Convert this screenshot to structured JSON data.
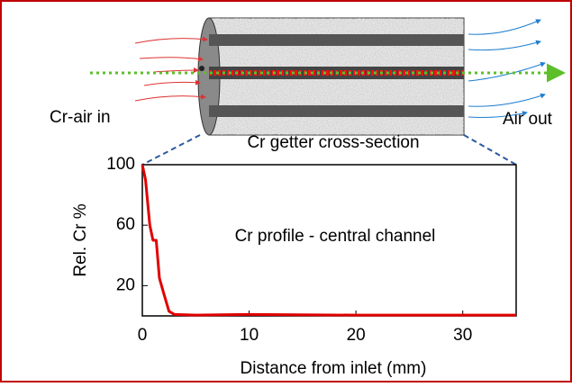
{
  "diagram": {
    "inlet_label": "Cr-air in",
    "outlet_label": "Air out",
    "caption": "Cr getter cross-section"
  },
  "chart_data": {
    "type": "line",
    "annotation": "Cr profile - central channel",
    "xlabel": "Distance from inlet (mm)",
    "ylabel": "Rel. Cr %",
    "x": [
      0,
      0.3,
      0.7,
      1,
      1.3,
      1.6,
      2,
      2.5,
      3,
      5,
      10,
      20,
      30,
      35
    ],
    "values": [
      100,
      90,
      60,
      50,
      50,
      25,
      15,
      3,
      1,
      0.5,
      1,
      0.5,
      0.5,
      0.5
    ],
    "color": "#e00000",
    "xlim": [
      0,
      35
    ],
    "xticks": [
      0,
      10,
      20,
      30
    ],
    "ylim": [
      0,
      100
    ],
    "yticks": [
      20,
      60,
      100
    ]
  }
}
